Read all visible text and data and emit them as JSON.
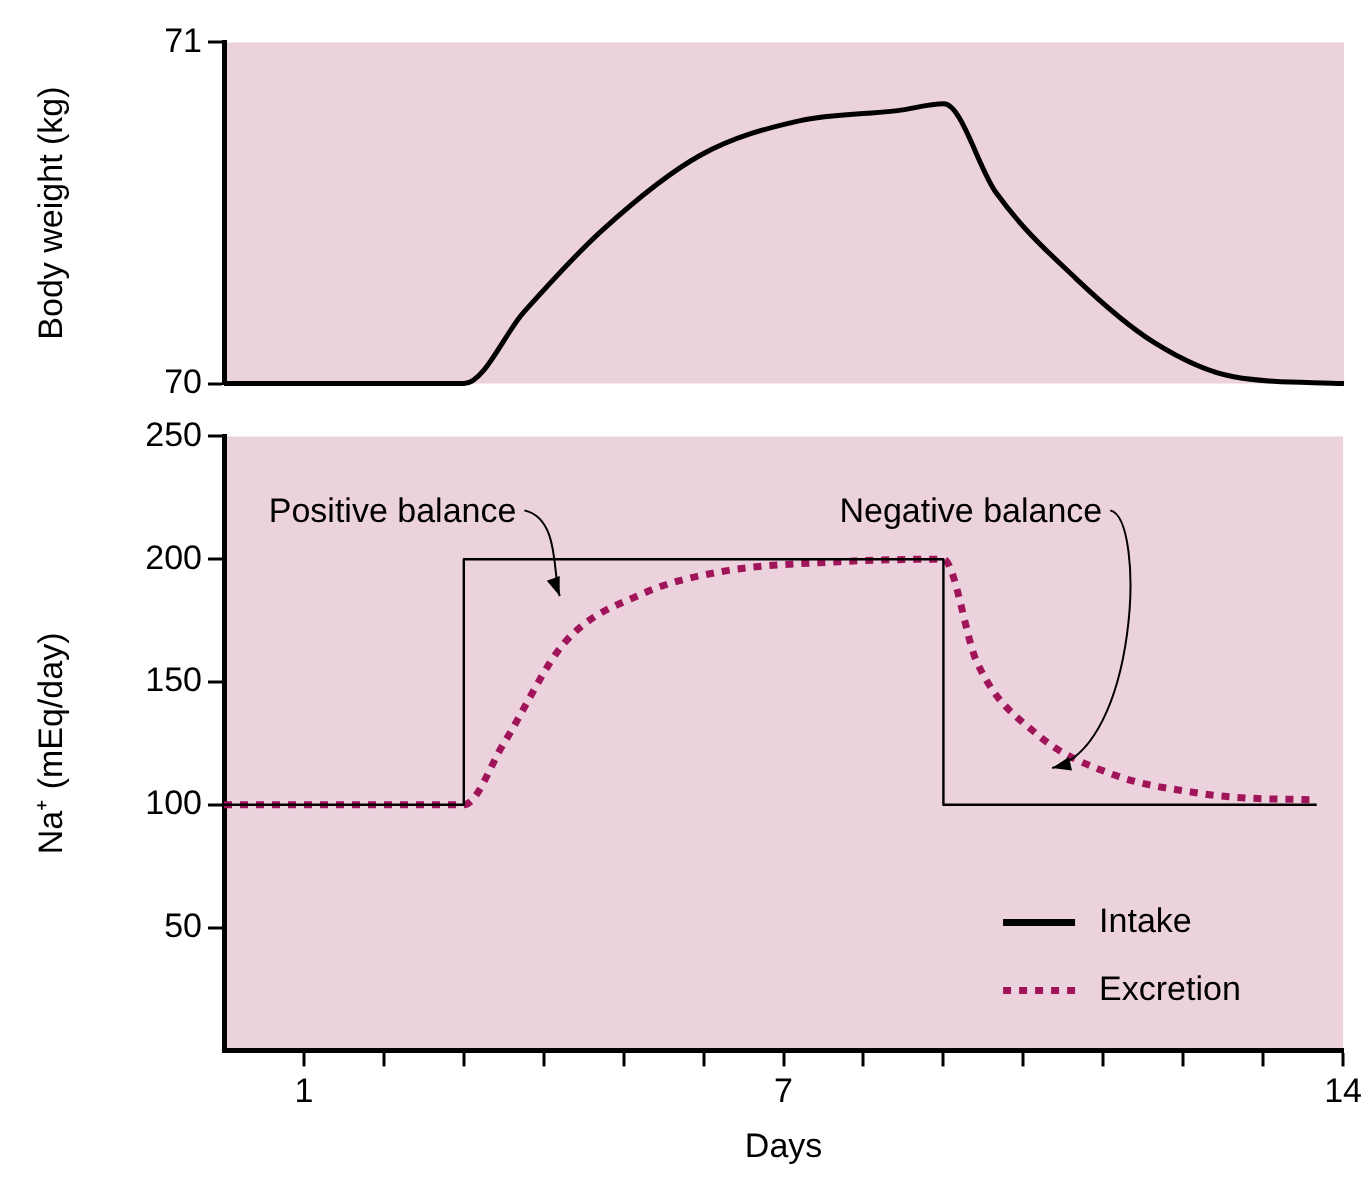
{
  "chart_data": [
    {
      "type": "line",
      "ylabel": "Body weight (kg)",
      "xlim": [
        0,
        14
      ],
      "ylim": [
        70,
        71
      ],
      "yticks": [
        70,
        71
      ],
      "tick_labels": "y",
      "series": [
        {
          "color": "#000000",
          "line_style": "solid",
          "x": [
            0,
            3,
            3.75,
            4.73,
            5.96,
            7.19,
            8.42,
            9.0,
            9.65,
            10.64,
            11.63,
            12.62,
            14
          ],
          "values": [
            70,
            70,
            70.21,
            70.45,
            70.67,
            70.77,
            70.8,
            70.82,
            70.56,
            70.31,
            70.12,
            70.02,
            70
          ]
        }
      ]
    },
    {
      "type": "line",
      "xlabel": "Days",
      "ylabel": "Na⁺ (mEq/day)",
      "xlim": [
        0,
        14
      ],
      "ylim": [
        0,
        250
      ],
      "yticks": [
        50,
        100,
        150,
        200,
        250
      ],
      "xticks": [
        1,
        {
          "value": 2,
          "label": null
        },
        {
          "value": 3,
          "label": null
        },
        {
          "value": 4,
          "label": null
        },
        {
          "value": 5,
          "label": null
        },
        {
          "value": 6,
          "label": null
        },
        7,
        {
          "value": 8,
          "label": null
        },
        {
          "value": 9,
          "label": null
        },
        {
          "value": 10,
          "label": null
        },
        {
          "value": 11,
          "label": null
        },
        {
          "value": 12,
          "label": null
        },
        {
          "value": 13,
          "label": null
        },
        14
      ],
      "legend": "bottom right",
      "annotations": [
        "Positive balance",
        "Negative balance"
      ],
      "series": [
        {
          "name": "Intake",
          "color": "#000000",
          "line_style": "solid",
          "x": [
            0,
            3,
            3,
            9,
            9,
            13.67
          ],
          "values": [
            100,
            100,
            200,
            200,
            100,
            100
          ]
        },
        {
          "name": "Excretion",
          "color": "#a0145a",
          "line_style": "dotted",
          "x": [
            0,
            3,
            3.5,
            4.26,
            5.24,
            6.23,
            7.71,
            9.0,
            9.42,
            10.16,
            11.15,
            12.14,
            12.68,
            13.67
          ],
          "values": [
            100,
            100,
            125,
            166,
            186,
            195,
            199,
            200,
            158,
            129,
            112,
            105,
            103,
            102
          ]
        }
      ]
    }
  ]
}
